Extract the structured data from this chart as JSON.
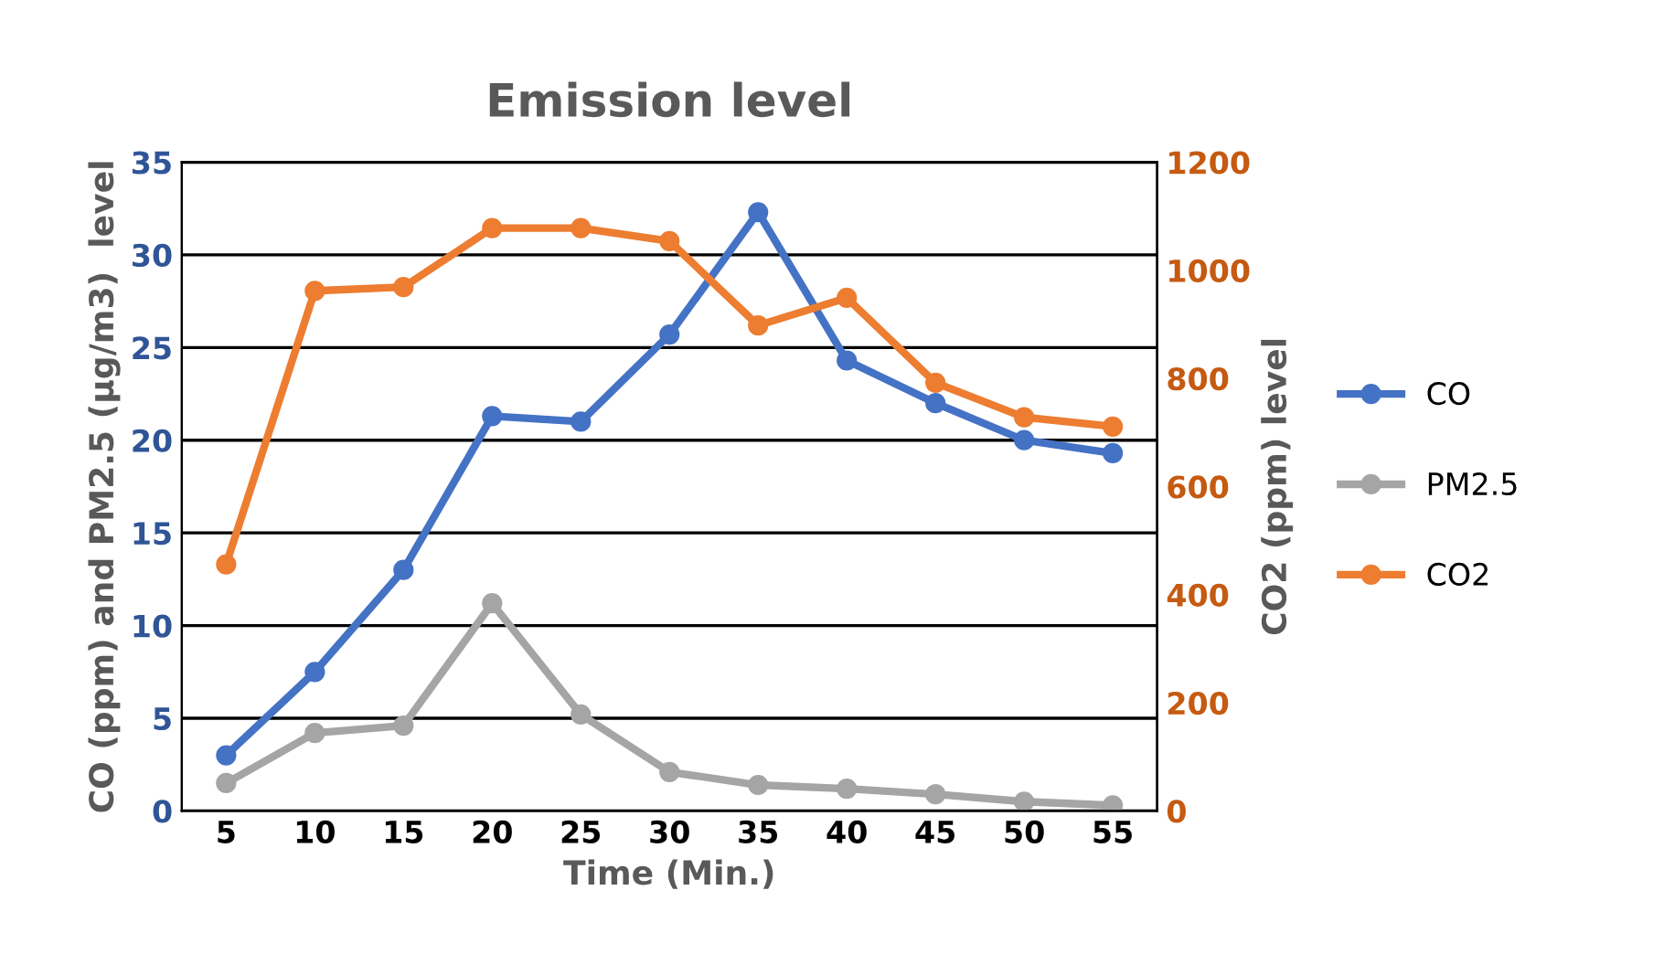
{
  "chart_data": {
    "type": "line",
    "title": "Emission level",
    "xlabel": "Time (Min.)",
    "ylabel": "CO (ppm) and PM2.5 (µg/m3)  level",
    "y2label": "CO2 (ppm) level",
    "categories": [
      "5",
      "10",
      "15",
      "20",
      "25",
      "30",
      "35",
      "40",
      "45",
      "50",
      "55"
    ],
    "series": [
      {
        "name": "CO",
        "color": "#4472c4",
        "values": [
          3,
          7.5,
          13,
          21.3,
          21,
          25.7,
          32.3,
          24.3,
          22,
          20,
          19.3
        ]
      },
      {
        "name": "PM2.5",
        "color": "#a5a5a5",
        "values": [
          1.5,
          4.2,
          4.6,
          11.2,
          5.2,
          2.1,
          1.4,
          1.2,
          0.9,
          0.5,
          0.3
        ]
      },
      {
        "name": "CO2",
        "color": "#ed7d31",
        "axis": "y2",
        "values": [
          456,
          962,
          969,
          1078,
          1078,
          1054,
          898,
          949,
          792,
          728,
          711
        ]
      }
    ],
    "ylim": [
      0,
      35
    ],
    "yticks": [
      0,
      5,
      10,
      15,
      20,
      25,
      30,
      35
    ],
    "y2lim": [
      0,
      1200
    ],
    "y2ticks": [
      0,
      200,
      400,
      600,
      800,
      1000,
      1200
    ],
    "grid": "y",
    "legend": "right",
    "marker": "circle",
    "line_style": "solid"
  }
}
